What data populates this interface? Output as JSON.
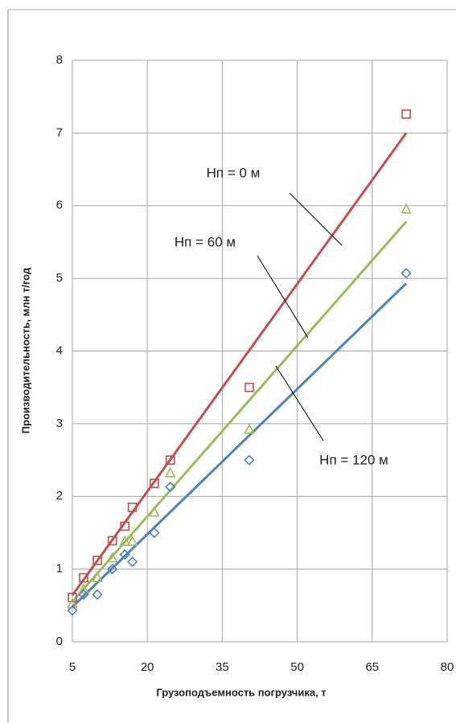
{
  "chart_data": {
    "type": "scatter",
    "x_label": "Грузоподъемность погрузчика, т",
    "y_label": "Производительность, млн т/год",
    "x": [
      5,
      7.25,
      10,
      13,
      15.5,
      17,
      21.4,
      24.6,
      40.4,
      71.8
    ],
    "trend_x": [
      5,
      71.8
    ],
    "series": [
      {
        "name": "Нп = 0 м",
        "color": "#c0504d",
        "marker": "square",
        "values": [
          0.61,
          0.88,
          1.12,
          1.39,
          1.59,
          1.85,
          2.18,
          2.5,
          3.5,
          7.26
        ],
        "trend": [
          0.64,
          7.0
        ]
      },
      {
        "name": "Нп = 60 м",
        "color": "#9bbb59",
        "marker": "triangle",
        "values": [
          0.52,
          0.72,
          0.88,
          1.15,
          1.38,
          1.38,
          1.78,
          2.32,
          2.92,
          5.95
        ],
        "trend": [
          0.55,
          5.78
        ]
      },
      {
        "name": "Нп = 120 м",
        "color": "#4f81bd",
        "marker": "diamond",
        "values": [
          0.43,
          0.65,
          0.65,
          1.0,
          1.2,
          1.1,
          1.5,
          2.13,
          2.5,
          5.07
        ],
        "trend": [
          0.48,
          4.93
        ]
      }
    ],
    "xlim": [
      5,
      80
    ],
    "xticks": [
      5,
      20,
      35,
      50,
      65,
      80
    ],
    "ylim": [
      0,
      8
    ],
    "yticks": [
      0,
      1,
      2,
      3,
      4,
      5,
      6,
      7,
      8
    ],
    "grid": true
  }
}
